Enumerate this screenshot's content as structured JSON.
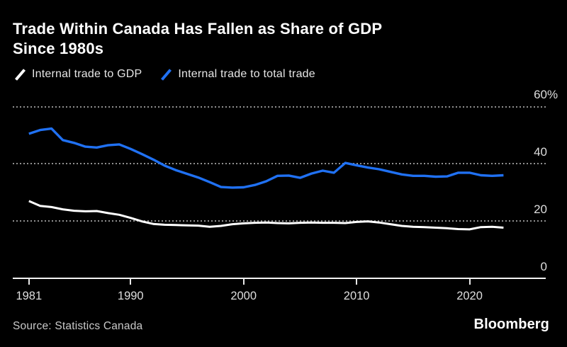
{
  "header": {
    "title_lines": [
      "Trade Within Canada Has Fallen as Share of GDP",
      "Since 1980s"
    ]
  },
  "legend": {
    "items": [
      {
        "label": "Internal trade to GDP",
        "color": "#ffffff"
      },
      {
        "label": "Internal trade to total trade",
        "color": "#2071f3"
      }
    ]
  },
  "footer": {
    "source": "Source: Statistics Canada",
    "brand": "Bloomberg"
  },
  "colors": {
    "background": "#000000",
    "grid": "#8f8f8f",
    "axis": "#f2f2f2",
    "label": "#dedede",
    "series_white": "#ffffff",
    "series_blue": "#2071f3"
  },
  "chart_data": {
    "type": "line",
    "title": "Trade Within Canada Has Fallen as Share of GDP Since 1980s",
    "xlabel": "",
    "ylabel": "%",
    "grid": "dashed-horizontal",
    "legend_position": "top-left",
    "xlim": [
      1979.57,
      2026.74
    ],
    "ylim": [
      0,
      60
    ],
    "yticks": [
      {
        "value": 60,
        "label": "60",
        "suffix": "%"
      },
      {
        "value": 40,
        "label": "40",
        "suffix": ""
      },
      {
        "value": 20,
        "label": "20",
        "suffix": ""
      },
      {
        "value": 0,
        "label": "0",
        "suffix": ""
      }
    ],
    "xticks": [
      {
        "value": 1981,
        "label": "1981"
      },
      {
        "value": 1990,
        "label": "1990"
      },
      {
        "value": 2000,
        "label": "2000"
      },
      {
        "value": 2010,
        "label": "2010"
      },
      {
        "value": 2020,
        "label": "2020"
      }
    ],
    "x": [
      1981,
      1982,
      1983,
      1984,
      1985,
      1986,
      1987,
      1988,
      1989,
      1990,
      1991,
      1992,
      1993,
      1994,
      1995,
      1996,
      1997,
      1998,
      1999,
      2000,
      2001,
      2002,
      2003,
      2004,
      2005,
      2006,
      2007,
      2008,
      2009,
      2010,
      2011,
      2012,
      2013,
      2014,
      2015,
      2016,
      2017,
      2018,
      2019,
      2020,
      2021,
      2022,
      2023
    ],
    "series": [
      {
        "name": "Internal trade to GDP",
        "color": "#ffffff",
        "stroke_width": 3,
        "values": [
          27.0,
          25.3,
          24.9,
          24.1,
          23.6,
          23.4,
          23.5,
          22.8,
          22.2,
          21.1,
          19.9,
          19.0,
          18.7,
          18.6,
          18.5,
          18.4,
          18.0,
          18.3,
          18.9,
          19.2,
          19.4,
          19.5,
          19.3,
          19.2,
          19.4,
          19.5,
          19.4,
          19.4,
          19.3,
          19.7,
          19.9,
          19.5,
          18.9,
          18.3,
          18.0,
          17.9,
          17.7,
          17.5,
          17.2,
          17.1,
          17.9,
          18.0,
          17.7
        ]
      },
      {
        "name": "Internal trade to total trade",
        "color": "#2071f3",
        "stroke_width": 3.4,
        "values": [
          50.5,
          51.8,
          52.3,
          48.3,
          47.3,
          46.0,
          45.7,
          46.5,
          46.8,
          45.2,
          43.4,
          41.5,
          39.4,
          37.8,
          36.5,
          35.2,
          33.6,
          31.9,
          31.7,
          31.8,
          32.6,
          33.9,
          35.8,
          35.9,
          35.1,
          36.6,
          37.6,
          36.9,
          40.3,
          39.5,
          38.7,
          38.1,
          37.2,
          36.3,
          35.8,
          35.8,
          35.5,
          35.6,
          36.9,
          36.9,
          36.0,
          35.8,
          36.0
        ]
      }
    ]
  }
}
